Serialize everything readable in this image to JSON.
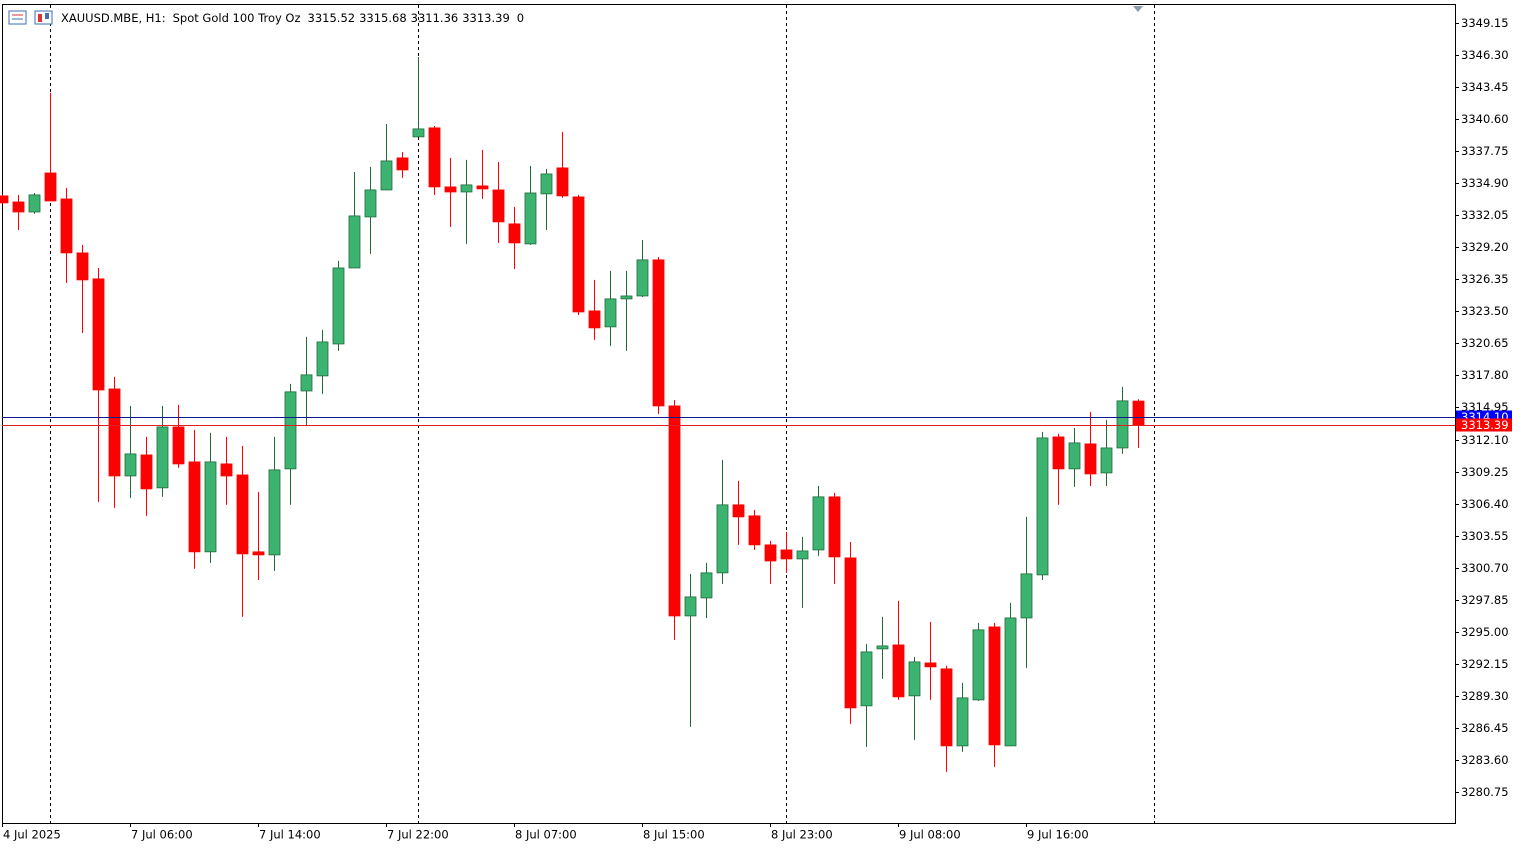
{
  "chart_data": {
    "type": "candlestick",
    "symbol": "XAUUSD.MBE, H1:",
    "description": "Spot Gold 100 Troy Oz",
    "extra": 0,
    "up_color": "#3cb371",
    "down_color": "#ff0000",
    "ask_line": {
      "value": 3314.1,
      "label": "3314.10"
    },
    "categories": [
      "4 Jul 2025",
      null,
      null,
      null,
      null,
      null,
      null,
      null,
      "7 Jul 06:00",
      null,
      null,
      null,
      null,
      null,
      null,
      null,
      "7 Jul 14:00",
      null,
      null,
      null,
      null,
      null,
      null,
      null,
      "7 Jul 22:00",
      null,
      null,
      null,
      null,
      null,
      null,
      null,
      "8 Jul 07:00",
      null,
      null,
      null,
      null,
      null,
      null,
      null,
      "8 Jul 15:00",
      null,
      null,
      null,
      null,
      null,
      null,
      null,
      "8 Jul 23:00",
      null,
      null,
      null,
      null,
      null,
      null,
      null,
      "9 Jul 08:00",
      null,
      null,
      null,
      null,
      null,
      null,
      null,
      "9 Jul 16:00",
      null,
      null,
      null,
      null,
      null,
      null,
      null
    ],
    "open": [
      3333.77,
      3333.23,
      3332.34,
      3335.81,
      3333.5,
      3328.7,
      3326.39,
      3316.6,
      3308.86,
      3310.73,
      3307.8,
      3313.22,
      3310.11,
      3302.11,
      3309.93,
      3308.95,
      3302.11,
      3301.84,
      3309.49,
      3316.42,
      3317.76,
      3320.6,
      3327.36,
      3331.9,
      3334.3,
      3337.15,
      3339.02,
      3339.82,
      3334.57,
      3334.12,
      3334.66,
      3334.3,
      3331.28,
      3329.5,
      3333.95,
      3336.26,
      3333.68,
      3323.54,
      3322.12,
      3324.61,
      3324.87,
      3328.08,
      3315.09,
      3296.41,
      3298.01,
      3300.24,
      3306.29,
      3305.31,
      3302.73,
      3302.28,
      3301.48,
      3302.28,
      3307.0,
      3301.57,
      3288.41,
      3293.48,
      3293.83,
      3289.3,
      3292.23,
      3291.7,
      3284.85,
      3288.94,
      3295.43,
      3284.85,
      3296.23,
      3300.06,
      3312.33,
      3309.49,
      3311.71,
      3309.13,
      3311.35,
      3315.52
    ],
    "high": [
      3333.86,
      3333.86,
      3334.03,
      3342.93,
      3334.48,
      3329.41,
      3327.36,
      3317.67,
      3315.09,
      3312.33,
      3315.09,
      3315.18,
      3312.96,
      3312.69,
      3312.33,
      3311.53,
      3307.44,
      3312.33,
      3317.05,
      3321.23,
      3321.85,
      3327.99,
      3335.9,
      3336.35,
      3340.17,
      3337.68,
      3346.13,
      3339.99,
      3337.15,
      3336.97,
      3337.86,
      3336.79,
      3332.79,
      3336.44,
      3336.17,
      3339.46,
      3333.86,
      3326.3,
      3327.1,
      3327.1,
      3329.85,
      3328.34,
      3315.62,
      3300.15,
      3301.13,
      3310.29,
      3308.42,
      3305.84,
      3303.08,
      3303.88,
      3303.44,
      3307.97,
      3307.35,
      3302.99,
      3293.92,
      3296.32,
      3297.75,
      3292.77,
      3295.88,
      3291.97,
      3290.45,
      3295.79,
      3295.79,
      3297.57,
      3305.22,
      3312.78,
      3312.6,
      3313.13,
      3314.56,
      3313.85,
      3316.78,
      3315.68
    ],
    "low": [
      3333.06,
      3330.74,
      3332.17,
      3333.32,
      3326.03,
      3321.58,
      3306.55,
      3306.02,
      3306.91,
      3305.31,
      3307.0,
      3309.58,
      3300.59,
      3301.13,
      3306.29,
      3296.32,
      3299.61,
      3300.42,
      3306.29,
      3313.31,
      3316.16,
      3319.98,
      3327.36,
      3328.61,
      3334.3,
      3335.37,
      3339.02,
      3333.86,
      3331.01,
      3329.5,
      3333.5,
      3329.59,
      3327.27,
      3329.41,
      3330.74,
      3333.59,
      3323.18,
      3320.96,
      3320.43,
      3319.98,
      3324.78,
      3314.38,
      3294.28,
      3286.54,
      3296.23,
      3299.26,
      3302.73,
      3302.28,
      3299.26,
      3300.24,
      3297.12,
      3301.75,
      3299.26,
      3286.81,
      3284.76,
      3290.81,
      3288.94,
      3285.38,
      3288.94,
      3282.54,
      3284.32,
      3288.85,
      3282.98,
      3284.85,
      3291.79,
      3299.61,
      3306.29,
      3307.89,
      3307.97,
      3307.97,
      3310.82,
      3311.36
    ],
    "close": [
      3333.15,
      3332.34,
      3333.86,
      3333.32,
      3328.7,
      3326.3,
      3316.51,
      3308.86,
      3310.82,
      3307.71,
      3313.22,
      3309.93,
      3302.11,
      3310.11,
      3308.86,
      3301.93,
      3301.84,
      3309.4,
      3316.34,
      3317.85,
      3320.78,
      3327.36,
      3331.99,
      3334.3,
      3336.88,
      3336.08,
      3339.73,
      3334.57,
      3334.12,
      3334.75,
      3334.39,
      3331.46,
      3329.59,
      3334.03,
      3335.72,
      3333.77,
      3323.45,
      3322.03,
      3324.61,
      3324.87,
      3328.08,
      3315.09,
      3296.41,
      3298.1,
      3300.24,
      3306.29,
      3305.22,
      3302.73,
      3301.3,
      3301.48,
      3302.19,
      3307.0,
      3301.66,
      3288.23,
      3293.21,
      3293.74,
      3289.21,
      3292.32,
      3291.88,
      3284.85,
      3289.12,
      3295.17,
      3284.94,
      3296.23,
      3300.15,
      3312.24,
      3309.49,
      3311.8,
      3309.04,
      3311.35,
      3315.54,
      3313.39
    ],
    "ylim": [
      3277.99,
      3350.75
    ],
    "yticks": [
      3349.15,
      {
        "value": 3346.3,
        "label": "3346.30"
      },
      3343.45,
      {
        "value": 3340.6,
        "label": "3340.60"
      },
      3337.75,
      {
        "value": 3334.9,
        "label": "3334.90"
      },
      3332.05,
      {
        "value": 3329.2,
        "label": "3329.20"
      },
      3326.35,
      {
        "value": 3323.5,
        "label": "3323.50"
      },
      3320.65,
      {
        "value": 3317.8,
        "label": "3317.80"
      },
      3314.95,
      {
        "value": 3312.1,
        "label": "3312.10"
      },
      3309.25,
      {
        "value": 3306.4,
        "label": "3306.40"
      },
      3303.55,
      {
        "value": 3300.7,
        "label": "3300.70"
      },
      3297.85,
      {
        "value": 3295.0,
        "label": "3295.00"
      },
      3292.15,
      {
        "value": 3289.3,
        "label": "3289.30"
      },
      3286.45,
      {
        "value": 3283.6,
        "label": "3283.60"
      },
      3280.75
    ]
  }
}
